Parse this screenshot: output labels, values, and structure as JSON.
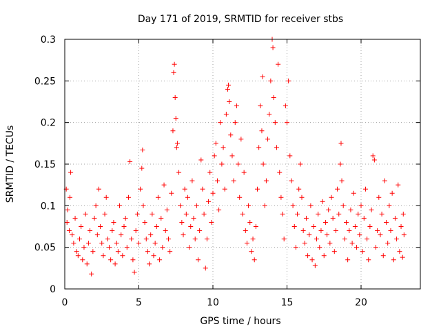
{
  "chart_data": {
    "type": "scatter",
    "title": "Day 171 of 2019, SRMTID for receiver stbs",
    "xlabel": "GPS time / hours",
    "ylabel": "SRMTID / TECUs",
    "xlim": [
      0,
      24
    ],
    "ylim": [
      0,
      0.3
    ],
    "x_ticks": [
      0,
      5,
      10,
      15,
      20
    ],
    "x_tick_labels": [
      "0",
      "5",
      "10",
      "15",
      "20"
    ],
    "y_ticks": [
      0,
      0.05,
      0.1,
      0.15,
      0.2,
      0.25,
      0.3
    ],
    "y_tick_labels": [
      "0",
      "0.05",
      "0.1",
      "0.15",
      "0.2",
      "0.25",
      "0.3"
    ],
    "grid": true,
    "marker": "plus",
    "color": "#ff0000",
    "series": [
      {
        "name": "SRMTID",
        "points": [
          [
            0.1,
            0.12
          ],
          [
            0.15,
            0.08
          ],
          [
            0.2,
            0.095
          ],
          [
            0.3,
            0.07
          ],
          [
            0.35,
            0.11
          ],
          [
            0.4,
            0.14
          ],
          [
            0.5,
            0.065
          ],
          [
            0.6,
            0.055
          ],
          [
            0.7,
            0.085
          ],
          [
            0.8,
            0.045
          ],
          [
            0.9,
            0.04
          ],
          [
            1.0,
            0.06
          ],
          [
            1.1,
            0.075
          ],
          [
            1.2,
            0.035
          ],
          [
            1.3,
            0.05
          ],
          [
            1.4,
            0.09
          ],
          [
            1.5,
            0.03
          ],
          [
            1.6,
            0.055
          ],
          [
            1.7,
            0.07
          ],
          [
            1.8,
            0.018
          ],
          [
            1.9,
            0.045
          ],
          [
            2.0,
            0.085
          ],
          [
            2.1,
            0.1
          ],
          [
            2.2,
            0.065
          ],
          [
            2.3,
            0.12
          ],
          [
            2.4,
            0.075
          ],
          [
            2.5,
            0.055
          ],
          [
            2.6,
            0.04
          ],
          [
            2.7,
            0.09
          ],
          [
            2.8,
            0.11
          ],
          [
            2.9,
            0.06
          ],
          [
            3.0,
            0.05
          ],
          [
            3.1,
            0.035
          ],
          [
            3.2,
            0.07
          ],
          [
            3.3,
            0.08
          ],
          [
            3.4,
            0.03
          ],
          [
            3.5,
            0.055
          ],
          [
            3.6,
            0.045
          ],
          [
            3.7,
            0.1
          ],
          [
            3.8,
            0.065
          ],
          [
            3.9,
            0.04
          ],
          [
            4.0,
            0.075
          ],
          [
            4.1,
            0.085
          ],
          [
            4.2,
            0.05
          ],
          [
            4.3,
            0.11
          ],
          [
            4.4,
            0.153
          ],
          [
            4.5,
            0.06
          ],
          [
            4.6,
            0.035
          ],
          [
            4.7,
            0.02
          ],
          [
            4.8,
            0.07
          ],
          [
            4.9,
            0.09
          ],
          [
            5.0,
            0.055
          ],
          [
            5.1,
            0.12
          ],
          [
            5.2,
            0.145
          ],
          [
            5.25,
            0.167
          ],
          [
            5.3,
            0.1
          ],
          [
            5.4,
            0.08
          ],
          [
            5.5,
            0.06
          ],
          [
            5.6,
            0.045
          ],
          [
            5.7,
            0.03
          ],
          [
            5.8,
            0.065
          ],
          [
            5.9,
            0.09
          ],
          [
            6.0,
            0.04
          ],
          [
            6.1,
            0.055
          ],
          [
            6.2,
            0.075
          ],
          [
            6.3,
            0.11
          ],
          [
            6.4,
            0.035
          ],
          [
            6.5,
            0.085
          ],
          [
            6.6,
            0.05
          ],
          [
            6.7,
            0.125
          ],
          [
            6.8,
            0.07
          ],
          [
            6.9,
            0.095
          ],
          [
            7.0,
            0.06
          ],
          [
            7.1,
            0.045
          ],
          [
            7.2,
            0.115
          ],
          [
            7.3,
            0.19
          ],
          [
            7.35,
            0.26
          ],
          [
            7.4,
            0.27
          ],
          [
            7.45,
            0.23
          ],
          [
            7.5,
            0.205
          ],
          [
            7.55,
            0.17
          ],
          [
            7.6,
            0.175
          ],
          [
            7.7,
            0.14
          ],
          [
            7.8,
            0.1
          ],
          [
            7.9,
            0.08
          ],
          [
            8.0,
            0.065
          ],
          [
            8.1,
            0.12
          ],
          [
            8.2,
            0.09
          ],
          [
            8.3,
            0.11
          ],
          [
            8.4,
            0.05
          ],
          [
            8.5,
            0.075
          ],
          [
            8.6,
            0.13
          ],
          [
            8.7,
            0.085
          ],
          [
            8.8,
            0.06
          ],
          [
            8.9,
            0.1
          ],
          [
            9.0,
            0.035
          ],
          [
            9.1,
            0.07
          ],
          [
            9.2,
            0.155
          ],
          [
            9.3,
            0.12
          ],
          [
            9.4,
            0.09
          ],
          [
            9.5,
            0.025
          ],
          [
            9.6,
            0.06
          ],
          [
            9.7,
            0.105
          ],
          [
            9.8,
            0.14
          ],
          [
            9.9,
            0.08
          ],
          [
            10.0,
            0.115
          ],
          [
            10.1,
            0.16
          ],
          [
            10.2,
            0.175
          ],
          [
            10.3,
            0.13
          ],
          [
            10.4,
            0.095
          ],
          [
            10.5,
            0.2
          ],
          [
            10.6,
            0.15
          ],
          [
            10.7,
            0.17
          ],
          [
            10.8,
            0.12
          ],
          [
            10.9,
            0.21
          ],
          [
            11.0,
            0.24
          ],
          [
            11.05,
            0.245
          ],
          [
            11.1,
            0.225
          ],
          [
            11.2,
            0.185
          ],
          [
            11.3,
            0.16
          ],
          [
            11.4,
            0.13
          ],
          [
            11.5,
            0.2
          ],
          [
            11.6,
            0.22
          ],
          [
            11.7,
            0.15
          ],
          [
            11.8,
            0.11
          ],
          [
            11.9,
            0.18
          ],
          [
            12.0,
            0.09
          ],
          [
            12.1,
            0.14
          ],
          [
            12.2,
            0.07
          ],
          [
            12.3,
            0.055
          ],
          [
            12.4,
            0.1
          ],
          [
            12.5,
            0.08
          ],
          [
            12.6,
            0.045
          ],
          [
            12.7,
            0.06
          ],
          [
            12.8,
            0.035
          ],
          [
            12.9,
            0.075
          ],
          [
            13.0,
            0.12
          ],
          [
            13.1,
            0.17
          ],
          [
            13.2,
            0.22
          ],
          [
            13.3,
            0.19
          ],
          [
            13.35,
            0.255
          ],
          [
            13.4,
            0.15
          ],
          [
            13.5,
            0.1
          ],
          [
            13.6,
            0.13
          ],
          [
            13.7,
            0.18
          ],
          [
            13.8,
            0.21
          ],
          [
            13.9,
            0.25
          ],
          [
            14.0,
            0.3
          ],
          [
            14.05,
            0.29
          ],
          [
            14.1,
            0.23
          ],
          [
            14.2,
            0.2
          ],
          [
            14.3,
            0.17
          ],
          [
            14.4,
            0.27
          ],
          [
            14.5,
            0.14
          ],
          [
            14.6,
            0.11
          ],
          [
            14.7,
            0.09
          ],
          [
            14.8,
            0.06
          ],
          [
            14.9,
            0.22
          ],
          [
            15.0,
            0.2
          ],
          [
            15.1,
            0.25
          ],
          [
            15.2,
            0.16
          ],
          [
            15.3,
            0.13
          ],
          [
            15.4,
            0.1
          ],
          [
            15.5,
            0.075
          ],
          [
            15.6,
            0.05
          ],
          [
            15.7,
            0.09
          ],
          [
            15.8,
            0.12
          ],
          [
            15.9,
            0.15
          ],
          [
            16.0,
            0.11
          ],
          [
            16.1,
            0.07
          ],
          [
            16.2,
            0.055
          ],
          [
            16.3,
            0.085
          ],
          [
            16.4,
            0.04
          ],
          [
            16.5,
            0.065
          ],
          [
            16.6,
            0.1
          ],
          [
            16.7,
            0.035
          ],
          [
            16.8,
            0.075
          ],
          [
            16.9,
            0.028
          ],
          [
            17.0,
            0.06
          ],
          [
            17.1,
            0.09
          ],
          [
            17.2,
            0.05
          ],
          [
            17.3,
            0.07
          ],
          [
            17.4,
            0.105
          ],
          [
            17.5,
            0.04
          ],
          [
            17.6,
            0.08
          ],
          [
            17.7,
            0.065
          ],
          [
            17.8,
            0.095
          ],
          [
            17.9,
            0.055
          ],
          [
            18.0,
            0.11
          ],
          [
            18.1,
            0.085
          ],
          [
            18.2,
            0.045
          ],
          [
            18.3,
            0.07
          ],
          [
            18.4,
            0.12
          ],
          [
            18.5,
            0.09
          ],
          [
            18.6,
            0.15
          ],
          [
            18.65,
            0.175
          ],
          [
            18.7,
            0.13
          ],
          [
            18.8,
            0.1
          ],
          [
            18.9,
            0.06
          ],
          [
            19.0,
            0.08
          ],
          [
            19.1,
            0.035
          ],
          [
            19.2,
            0.07
          ],
          [
            19.3,
            0.095
          ],
          [
            19.4,
            0.055
          ],
          [
            19.5,
            0.115
          ],
          [
            19.6,
            0.075
          ],
          [
            19.7,
            0.05
          ],
          [
            19.8,
            0.09
          ],
          [
            19.9,
            0.065
          ],
          [
            20.0,
            0.1
          ],
          [
            20.1,
            0.045
          ],
          [
            20.2,
            0.085
          ],
          [
            20.3,
            0.12
          ],
          [
            20.4,
            0.06
          ],
          [
            20.5,
            0.035
          ],
          [
            20.6,
            0.075
          ],
          [
            20.7,
            0.095
          ],
          [
            20.8,
            0.16
          ],
          [
            20.9,
            0.155
          ],
          [
            21.0,
            0.05
          ],
          [
            21.1,
            0.07
          ],
          [
            21.2,
            0.11
          ],
          [
            21.3,
            0.065
          ],
          [
            21.4,
            0.09
          ],
          [
            21.5,
            0.04
          ],
          [
            21.6,
            0.13
          ],
          [
            21.7,
            0.08
          ],
          [
            21.8,
            0.055
          ],
          [
            21.9,
            0.1
          ],
          [
            22.0,
            0.07
          ],
          [
            22.1,
            0.115
          ],
          [
            22.2,
            0.035
          ],
          [
            22.3,
            0.085
          ],
          [
            22.4,
            0.06
          ],
          [
            22.5,
            0.125
          ],
          [
            22.6,
            0.045
          ],
          [
            22.7,
            0.075
          ],
          [
            22.8,
            0.038
          ],
          [
            22.85,
            0.09
          ],
          [
            22.9,
            0.065
          ]
        ]
      }
    ]
  }
}
